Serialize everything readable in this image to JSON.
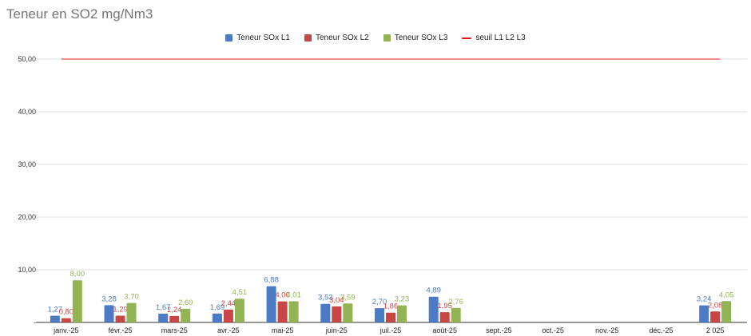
{
  "chart_data": {
    "type": "bar",
    "title": "Teneur en SO2 mg/Nm3",
    "categories": [
      "janv.-25",
      "févr.-25",
      "mars-25",
      "avr.-25",
      "mai-25",
      "juin-25",
      "juil.-25",
      "août-25",
      "sept.-25",
      "oct.-25",
      "nov.-25",
      "déc.-25",
      "2 025"
    ],
    "series": [
      {
        "name": "Teneur SOx L1",
        "color": "#4a7bc4",
        "values": [
          1.27,
          3.28,
          1.67,
          1.69,
          6.88,
          3.53,
          2.7,
          4.89,
          null,
          null,
          null,
          null,
          3.24
        ]
      },
      {
        "name": "Teneur SOx L2",
        "color": "#c94646",
        "values": [
          0.8,
          1.29,
          1.24,
          2.44,
          4.0,
          3.04,
          1.86,
          1.95,
          null,
          null,
          null,
          null,
          2.08
        ]
      },
      {
        "name": "Teneur SOx L3",
        "color": "#92b454",
        "values": [
          8.0,
          3.7,
          2.6,
          4.51,
          4.01,
          3.59,
          3.23,
          2.76,
          null,
          null,
          null,
          null,
          4.05
        ]
      }
    ],
    "threshold": {
      "name": "seuil L1 L2 L3",
      "color": "#e02020",
      "value": 50
    },
    "yticks": [
      "50,00",
      "40,00",
      "30,00",
      "20,00",
      "10,00",
      "-"
    ],
    "ylim": [
      0,
      50
    ],
    "grid": true,
    "legend": "top"
  }
}
